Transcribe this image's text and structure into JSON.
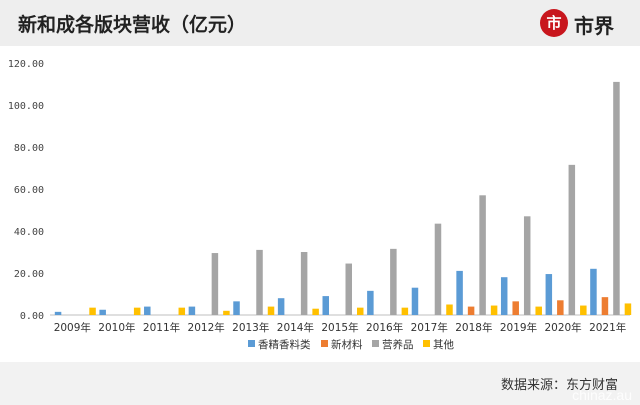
{
  "header": {
    "title": "新和成各版块营收（亿元）",
    "logo_icon": "yuan-circle-icon",
    "logo_badge": "市",
    "logo_text": "市界"
  },
  "footer": {
    "source": "数据来源：东方财富",
    "watermark": "chinaz.au"
  },
  "colors": {
    "header_bg": "#eeeeee",
    "logo_red": "#c8161d",
    "series": [
      "#5b9bd5",
      "#ed7d31",
      "#a5a5a5",
      "#ffc000"
    ]
  },
  "chart_data": {
    "type": "bar",
    "categories": [
      "2009年",
      "2010年",
      "2011年",
      "2012年",
      "2013年",
      "2014年",
      "2015年",
      "2016年",
      "2017年",
      "2018年",
      "2019年",
      "2020年",
      "2021年"
    ],
    "series": [
      {
        "name": "香精香料类",
        "values": [
          1.5,
          2.5,
          4,
          4,
          6.5,
          8,
          9,
          11.5,
          13,
          21,
          18,
          19.5,
          22
        ]
      },
      {
        "name": "新材料",
        "values": [
          0,
          0,
          0,
          0,
          0,
          0,
          0,
          0,
          0,
          4,
          6.5,
          7,
          8.5
        ]
      },
      {
        "name": "营养品",
        "values": [
          0,
          0,
          0,
          29.5,
          31,
          30,
          24.5,
          31.5,
          43.5,
          57,
          47,
          71.5,
          111
        ]
      },
      {
        "name": "其他",
        "values": [
          3.5,
          3.5,
          3.5,
          2,
          4,
          3,
          3.5,
          3.5,
          5,
          4.5,
          4,
          4.5,
          5.5
        ]
      }
    ],
    "yticks": [
      "0.00",
      "20.00",
      "40.00",
      "60.00",
      "80.00",
      "100.00",
      "120.00"
    ],
    "ylim": [
      0,
      120
    ],
    "legend_position": "bottom",
    "grid": false
  }
}
